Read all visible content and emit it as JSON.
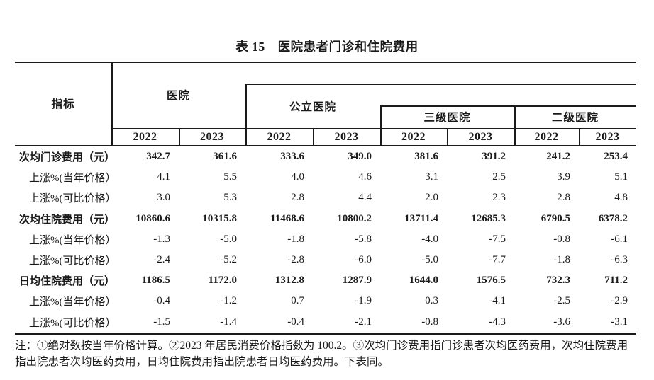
{
  "title": "表 15　医院患者门诊和住院费用",
  "colors": {
    "text": "#1a1a1a",
    "rule": "#1a1a1a",
    "background": "#ffffff"
  },
  "table": {
    "indicator_header": "指标",
    "groups": {
      "hospital": "医院",
      "public_hospital": "公立医院",
      "tertiary_hospital": "三级医院",
      "secondary_hospital": "二级医院"
    },
    "years": [
      "2022",
      "2023",
      "2022",
      "2023",
      "2022",
      "2023",
      "2022",
      "2023"
    ],
    "rows": [
      {
        "label": "次均门诊费用（元）",
        "style": "main",
        "values": [
          "342.7",
          "361.6",
          "333.6",
          "349.0",
          "381.6",
          "391.2",
          "241.2",
          "253.4"
        ]
      },
      {
        "label": "上涨%(当年价格）",
        "style": "sub",
        "values": [
          "4.1",
          "5.5",
          "4.0",
          "4.6",
          "3.1",
          "2.5",
          "3.9",
          "5.1"
        ]
      },
      {
        "label": "上涨%(可比价格）",
        "style": "sub",
        "values": [
          "3.0",
          "5.3",
          "2.8",
          "4.4",
          "2.0",
          "2.3",
          "2.8",
          "4.8"
        ]
      },
      {
        "label": "次均住院费用（元）",
        "style": "main",
        "values": [
          "10860.6",
          "10315.8",
          "11468.6",
          "10800.2",
          "13711.4",
          "12685.3",
          "6790.5",
          "6378.2"
        ]
      },
      {
        "label": "上涨%(当年价格）",
        "style": "sub",
        "values": [
          "-1.3",
          "-5.0",
          "-1.8",
          "-5.8",
          "-4.0",
          "-7.5",
          "-0.8",
          "-6.1"
        ]
      },
      {
        "label": "上涨%(可比价格）",
        "style": "sub",
        "values": [
          "-2.4",
          "-5.2",
          "-2.8",
          "-6.0",
          "-5.0",
          "-7.7",
          "-1.8",
          "-6.3"
        ]
      },
      {
        "label": "日均住院费用（元）",
        "style": "main",
        "values": [
          "1186.5",
          "1172.0",
          "1312.8",
          "1287.9",
          "1644.0",
          "1576.5",
          "732.3",
          "711.2"
        ]
      },
      {
        "label": "上涨%(当年价格）",
        "style": "sub",
        "values": [
          "-0.4",
          "-1.2",
          "0.7",
          "-1.9",
          "0.3",
          "-4.1",
          "-2.5",
          "-2.9"
        ]
      },
      {
        "label": "上涨%(可比价格）",
        "style": "sub",
        "values": [
          "-1.5",
          "-1.4",
          "-0.4",
          "-2.1",
          "-0.8",
          "-4.3",
          "-3.6",
          "-3.1"
        ]
      }
    ]
  },
  "footnote": "注：①绝对数按当年价格计算。②2023 年居民消费价格指数为 100.2。③次均门诊费用指门诊患者次均医药费用，次均住院费用指出院患者次均医药费用，日均住院费用指出院患者日均医药费用。下表同。"
}
